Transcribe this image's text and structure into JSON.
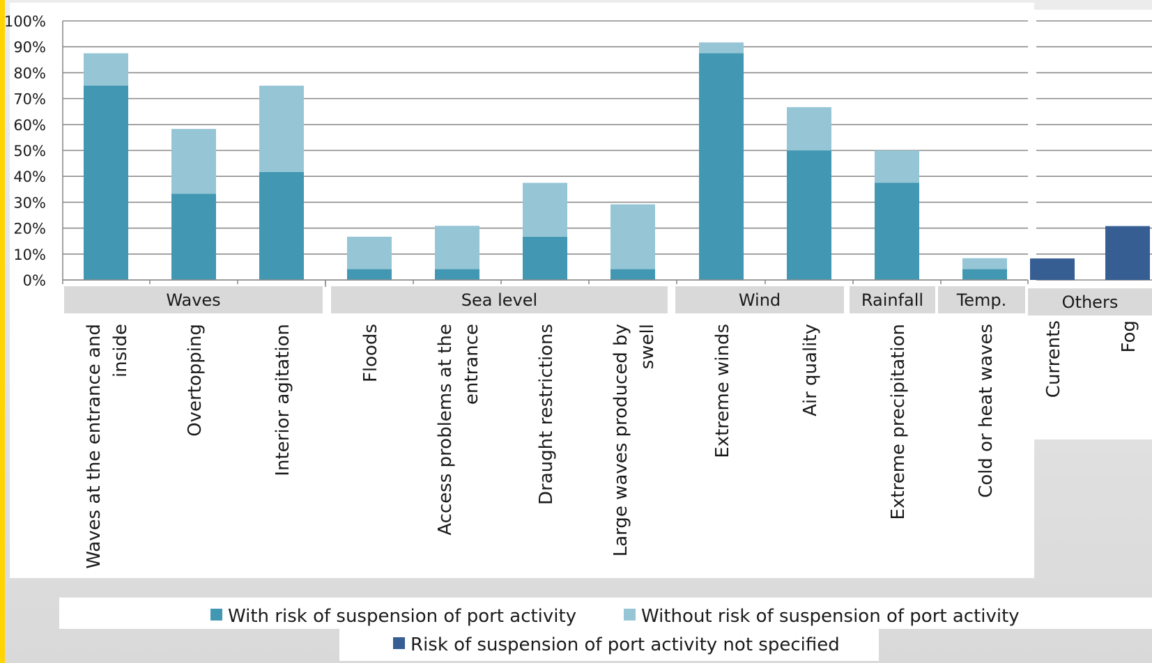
{
  "chart_data": {
    "type": "bar",
    "stacked": true,
    "ylim": [
      0,
      100
    ],
    "y_ticks": [
      "0%",
      "10%",
      "20%",
      "30%",
      "40%",
      "50%",
      "60%",
      "70%",
      "80%",
      "90%",
      "100%"
    ],
    "grid": true,
    "legend_position": "bottom",
    "groups": [
      "Waves",
      "Sea level",
      "Wind",
      "Rainfall",
      "Temp.",
      "Others"
    ],
    "categories": [
      {
        "label": "Waves at the entrance and inside",
        "lines": [
          "Waves at the entrance and",
          "inside"
        ],
        "group": "Waves"
      },
      {
        "label": "Overtopping",
        "lines": [
          "Overtopping"
        ],
        "group": "Waves"
      },
      {
        "label": "Interior agitation",
        "lines": [
          "Interior agitation"
        ],
        "group": "Waves"
      },
      {
        "label": "Floods",
        "lines": [
          "Floods"
        ],
        "group": "Sea level"
      },
      {
        "label": "Access problems at the entrance",
        "lines": [
          "Access problems at the",
          "entrance"
        ],
        "group": "Sea level"
      },
      {
        "label": "Draught restrictions",
        "lines": [
          "Draught restrictions"
        ],
        "group": "Sea level"
      },
      {
        "label": "Large waves produced by swell",
        "lines": [
          "Large waves produced by",
          "swell"
        ],
        "group": "Sea level"
      },
      {
        "label": "Extreme winds",
        "lines": [
          "Extreme winds"
        ],
        "group": "Wind"
      },
      {
        "label": "Air quality",
        "lines": [
          "Air quality"
        ],
        "group": "Wind"
      },
      {
        "label": "Extreme precipitation",
        "lines": [
          "Extreme precipitation"
        ],
        "group": "Rainfall"
      },
      {
        "label": "Cold or heat waves",
        "lines": [
          "Cold or heat waves"
        ],
        "group": "Temp."
      },
      {
        "label": "Currents",
        "lines": [
          "Currents"
        ],
        "group": "Others"
      },
      {
        "label": "Fog",
        "lines": [
          "Fog"
        ],
        "group": "Others"
      }
    ],
    "series": [
      {
        "name": "With risk of suspension of port activity",
        "color": "#4298b2",
        "values": [
          75,
          33.3,
          41.7,
          4.2,
          4.2,
          16.7,
          4.2,
          87.5,
          50,
          37.5,
          4.2,
          0,
          0
        ]
      },
      {
        "name": "Without risk of suspension of port activity",
        "color": "#96c6d6",
        "values": [
          12.5,
          25,
          33.3,
          12.5,
          16.7,
          20.8,
          25,
          4.2,
          16.7,
          12.5,
          4.2,
          0,
          0
        ]
      },
      {
        "name": "Risk of suspension of port activity not specified",
        "color": "#365e93",
        "values": [
          0,
          0,
          0,
          0,
          0,
          0,
          0,
          0,
          0,
          0,
          0,
          8.3,
          20.8
        ]
      }
    ]
  }
}
